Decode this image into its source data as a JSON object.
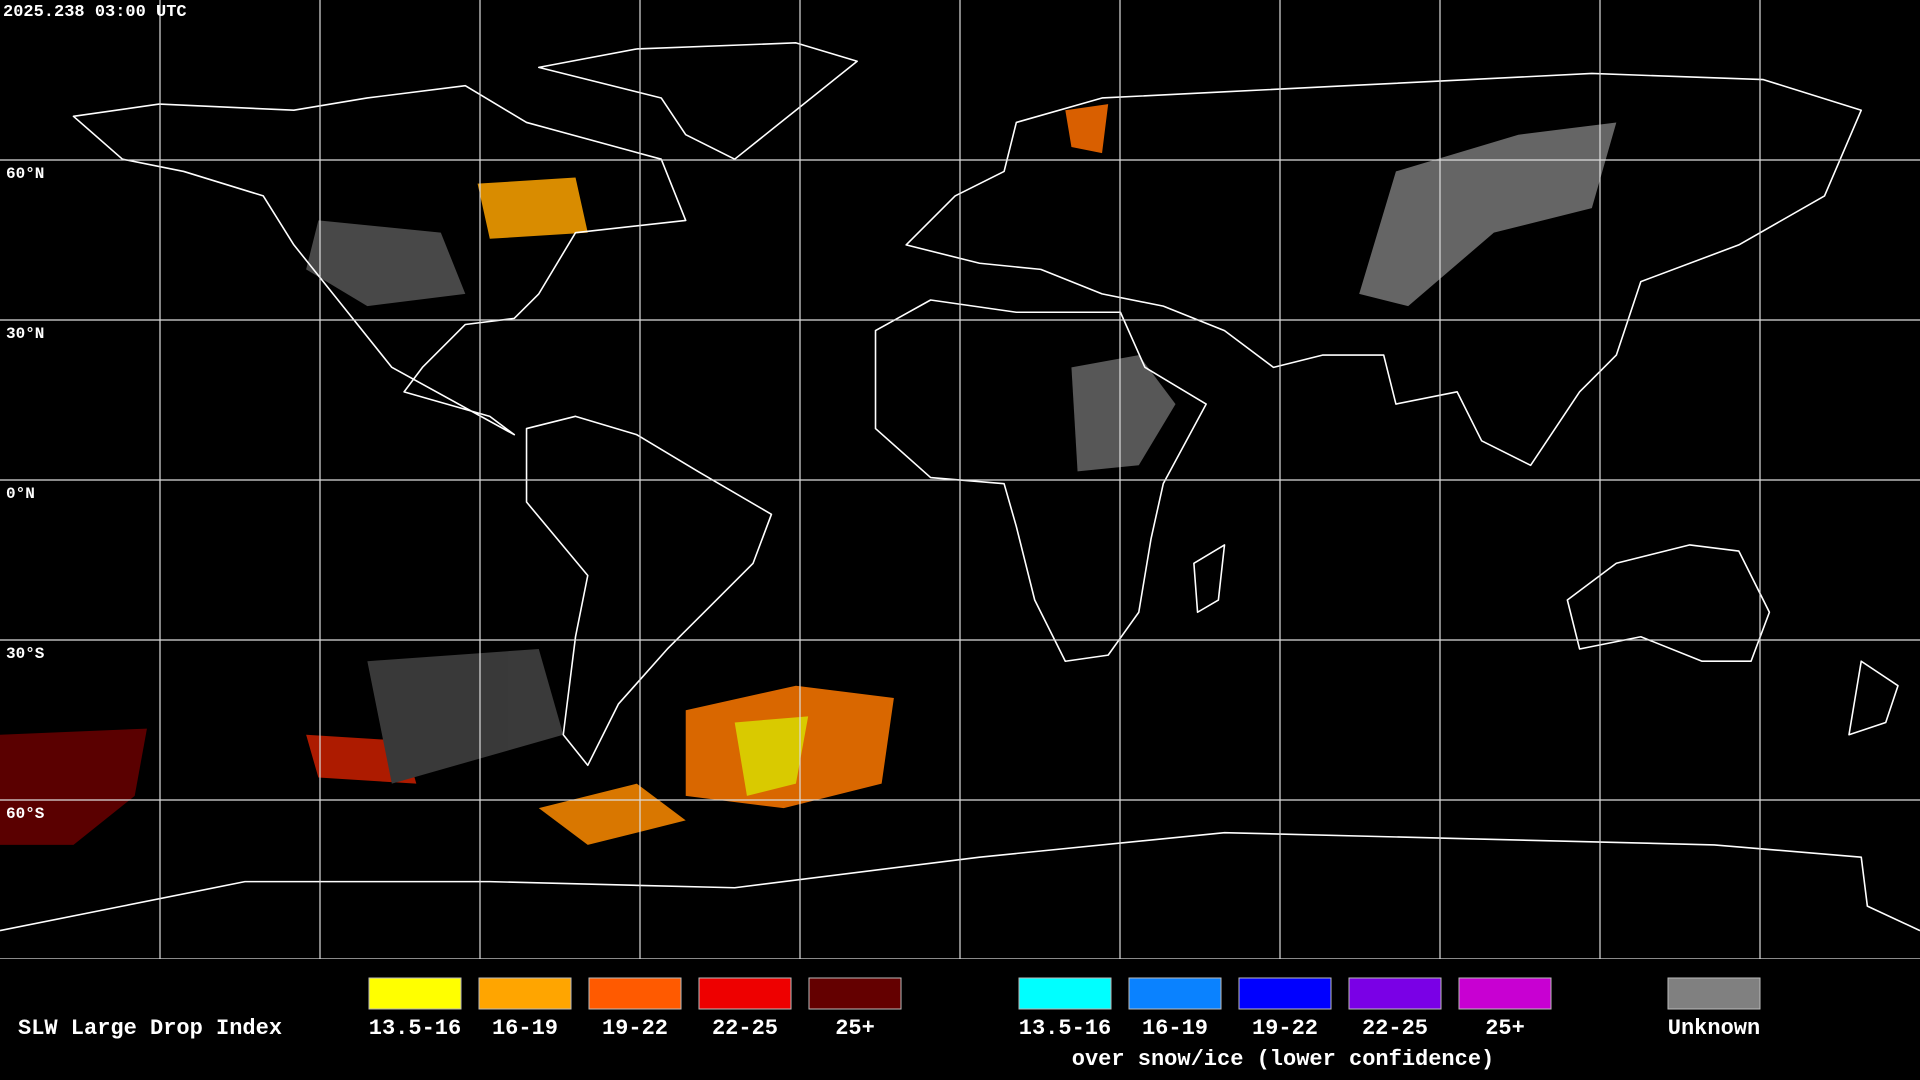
{
  "header": {
    "timestamp": "2025.238 03:00 UTC"
  },
  "latitude_labels": [
    "60°N",
    "30°N",
    "0°N",
    "30°S",
    "60°S"
  ],
  "legend": {
    "title": "SLW Large Drop Index",
    "items": [
      {
        "label": "13.5-16",
        "color": "#ffff00"
      },
      {
        "label": "16-19",
        "color": "#ffa500"
      },
      {
        "label": "19-22",
        "color": "#ff5a00"
      },
      {
        "label": "22-25",
        "color": "#ee0000"
      },
      {
        "label": "25+",
        "color": "#640000"
      }
    ],
    "snow_ice_items": [
      {
        "label": "13.5-16",
        "color": "#00ffff"
      },
      {
        "label": "16-19",
        "color": "#0a82ff"
      },
      {
        "label": "19-22",
        "color": "#0000ff"
      },
      {
        "label": "22-25",
        "color": "#7a00e6"
      },
      {
        "label": "25+",
        "color": "#c800d2"
      }
    ],
    "snow_ice_caption": "over snow/ice (lower confidence)",
    "unknown": {
      "label": "Unknown",
      "color": "#808080"
    }
  }
}
